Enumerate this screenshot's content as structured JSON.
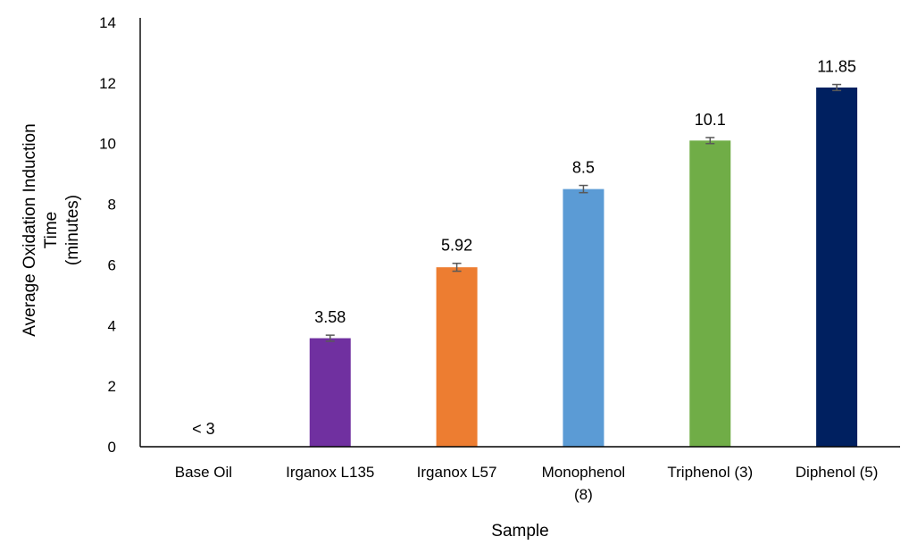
{
  "chart_data": {
    "type": "bar",
    "title": "",
    "xlabel": "Sample",
    "ylabel_lines": [
      "Average Oxidation Induction",
      "Time",
      "(minutes)"
    ],
    "ylim": [
      0,
      14
    ],
    "yticks": [
      0,
      2,
      4,
      6,
      8,
      10,
      12,
      14
    ],
    "grid": false,
    "legend": "none",
    "categories": [
      [
        "Base Oil"
      ],
      [
        "Irganox L135"
      ],
      [
        "Irganox L57"
      ],
      [
        "Monophenol",
        "(8)"
      ],
      [
        "Triphenol (3)"
      ],
      [
        "Diphenol (5)"
      ]
    ],
    "values": [
      0,
      3.58,
      5.92,
      8.5,
      10.1,
      11.85
    ],
    "errors": [
      0,
      0.1,
      0.13,
      0.12,
      0.1,
      0.1
    ],
    "data_labels": [
      "< 3",
      "3.58",
      "5.92",
      "8.5",
      "10.1",
      "11.85"
    ],
    "colors": [
      "#7f7f7f",
      "#7030a0",
      "#ed7d31",
      "#5b9bd5",
      "#70ad47",
      "#002060"
    ]
  }
}
